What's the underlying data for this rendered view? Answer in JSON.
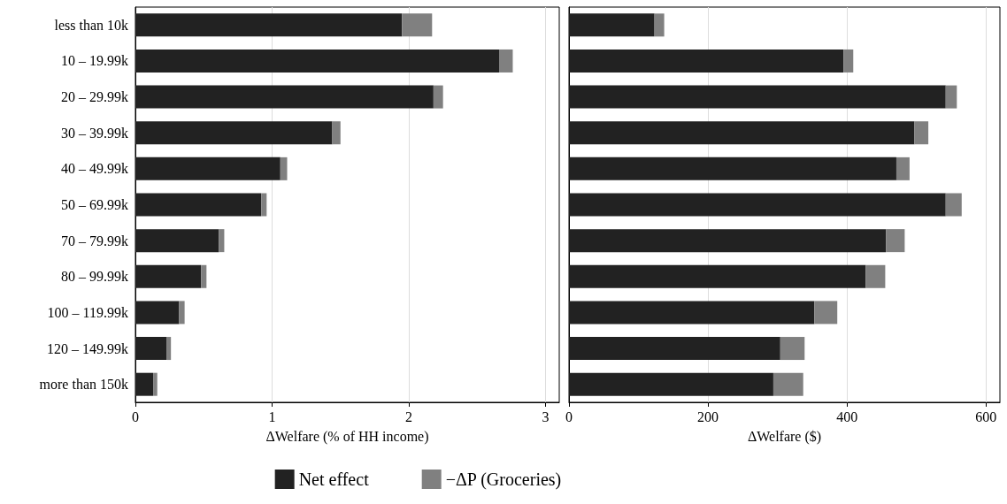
{
  "chart_data": [
    {
      "type": "bar",
      "orientation": "horizontal",
      "stacked": true,
      "xlabel": "ΔWelfare (% of HH income)",
      "categories": [
        "less than 10k",
        "10 – 19.99k",
        "20 – 29.99k",
        "30 – 39.99k",
        "40 – 49.99k",
        "50 – 69.99k",
        "70 – 79.99k",
        "80 – 99.99k",
        "100 – 119.99k",
        "120 – 149.99k",
        "more than 150k"
      ],
      "series": [
        {
          "name": "Net effect",
          "color": "#222222",
          "values": [
            1.95,
            2.66,
            2.18,
            1.44,
            1.06,
            0.92,
            0.61,
            0.48,
            0.32,
            0.23,
            0.13
          ]
        },
        {
          "name": "−ΔP (Groceries)",
          "color": "#808080",
          "values": [
            0.22,
            0.1,
            0.07,
            0.06,
            0.05,
            0.04,
            0.04,
            0.04,
            0.04,
            0.03,
            0.03
          ]
        }
      ],
      "xlim": [
        0,
        3.1
      ],
      "xticks": [
        0,
        1,
        2,
        3
      ],
      "grid": "x",
      "legend": "bottom"
    },
    {
      "type": "bar",
      "orientation": "horizontal",
      "stacked": true,
      "xlabel": "ΔWelfare ($)",
      "categories": [
        null,
        null,
        null,
        null,
        null,
        null,
        null,
        null,
        null,
        null,
        null
      ],
      "series": [
        {
          "color": "#222222",
          "values": [
            123,
            395,
            542,
            497,
            471,
            542,
            456,
            427,
            353,
            304,
            294
          ]
        },
        {
          "color": "#808080",
          "values": [
            14,
            14,
            16,
            20,
            19,
            23,
            27,
            28,
            33,
            35,
            43
          ]
        }
      ],
      "xlim": [
        0,
        620
      ],
      "xticks": [
        0,
        200,
        400,
        600
      ],
      "grid": "x",
      "tick_labels": "x",
      "legend": false
    }
  ]
}
